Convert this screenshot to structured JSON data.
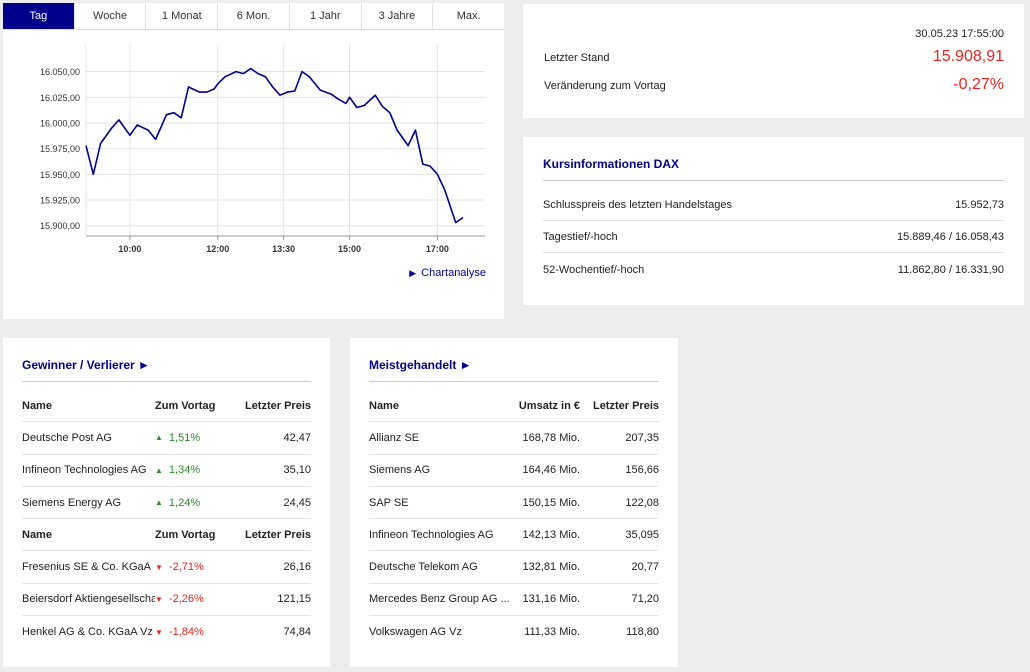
{
  "tabs": [
    "Tag",
    "Woche",
    "1 Monat",
    "6 Mon.",
    "1 Jahr",
    "3 Jahre",
    "Max."
  ],
  "active_tab": "Tag",
  "chart_link": "Chartanalyse",
  "chart_data": {
    "type": "line",
    "title": "",
    "xlabel": "",
    "ylabel": "",
    "x_ticks": [
      "10:00",
      "12:00",
      "13:30",
      "15:00",
      "17:00"
    ],
    "y_ticks": [
      "16.050,00",
      "16.025,00",
      "16.000,00",
      "15.975,00",
      "15.950,00",
      "15.925,00",
      "15.900,00"
    ],
    "ylim": [
      15890,
      16070
    ],
    "xlim": [
      "09:00",
      "18:05"
    ],
    "grid": true,
    "color": "#00008b",
    "series": [
      {
        "x": [
          "09:00",
          "09:10",
          "09:20",
          "09:35",
          "09:45",
          "10:00",
          "10:10",
          "10:25",
          "10:35",
          "10:50",
          "11:00",
          "11:10",
          "11:20",
          "11:35",
          "11:45",
          "11:55",
          "12:00",
          "12:10",
          "12:25",
          "12:35",
          "12:45",
          "12:55",
          "13:05",
          "13:15",
          "13:25",
          "13:35",
          "13:45",
          "13:55",
          "14:05",
          "14:20",
          "14:35",
          "14:45",
          "14:55",
          "15:00",
          "15:10",
          "15:20",
          "15:35",
          "15:45",
          "15:55",
          "16:05",
          "16:20",
          "16:30",
          "16:40",
          "16:50",
          "17:00",
          "17:10",
          "17:25",
          "17:35"
        ],
        "y": [
          15978,
          15950,
          15980,
          15995,
          16003,
          15988,
          15998,
          15993,
          15984,
          16008,
          16010,
          16005,
          16035,
          16030,
          16030,
          16033,
          16038,
          16045,
          16050,
          16048,
          16053,
          16048,
          16045,
          16035,
          16027,
          16030,
          16031,
          16050,
          16045,
          16032,
          16028,
          16023,
          16019,
          16025,
          16015,
          16017,
          16027,
          16016,
          16010,
          15993,
          15978,
          15993,
          15960,
          15958,
          15950,
          15935,
          15903,
          15908
        ]
      }
    ]
  },
  "quote": {
    "timestamp": "30.05.23 17:55:00",
    "last_label": "Letzter Stand",
    "last_value": "15.908,91",
    "change_label": "Veränderung zum Vortag",
    "change_value": "-0,27%"
  },
  "info": {
    "title": "Kursinformationen DAX",
    "rows": [
      {
        "label": "Schlusspreis des letzten Handelstages",
        "value": "15.952,73"
      },
      {
        "label": "Tagestief/-hoch",
        "value": "15.889,46 / 16.058,43"
      },
      {
        "label": "52-Wochentief/-hoch",
        "value": "11.862,80 / 16.331,90"
      }
    ]
  },
  "gainers": {
    "title": "Gewinner / Verlierer ►",
    "headers": [
      "Name",
      "Zum Vortag",
      "Letzter Preis"
    ],
    "up_rows": [
      {
        "name": "Deutsche Post AG",
        "change": "1,51%",
        "price": "42,47"
      },
      {
        "name": "Infineon Technologies AG",
        "change": "1,34%",
        "price": "35,10"
      },
      {
        "name": "Siemens Energy AG",
        "change": "1,24%",
        "price": "24,45"
      }
    ],
    "down_rows": [
      {
        "name": "Fresenius SE & Co. KGaA",
        "change": "-2,71%",
        "price": "26,16"
      },
      {
        "name": "Beiersdorf Aktiengesellschaft",
        "change": "-2,26%",
        "price": "121,15"
      },
      {
        "name": "Henkel AG & Co. KGaA Vz",
        "change": "-1,84%",
        "price": "74,84"
      }
    ],
    "up_color": "#2e8b2e",
    "down_color": "#e8231f"
  },
  "most_traded": {
    "title": "Meistgehandelt ►",
    "headers": [
      "Name",
      "Umsatz in €",
      "Letzter Preis"
    ],
    "rows": [
      {
        "name": "Allianz SE",
        "volume": "168,78 Mio.",
        "price": "207,35"
      },
      {
        "name": "Siemens AG",
        "volume": "164,46 Mio.",
        "price": "156,66"
      },
      {
        "name": "SAP SE",
        "volume": "150,15 Mio.",
        "price": "122,08"
      },
      {
        "name": "Infineon Technologies AG",
        "volume": "142,13 Mio.",
        "price": "35,095"
      },
      {
        "name": "Deutsche Telekom AG",
        "volume": "132,81 Mio.",
        "price": "20,77"
      },
      {
        "name": "Mercedes Benz Group AG ...",
        "volume": "131,16 Mio.",
        "price": "71,20"
      },
      {
        "name": "Volkswagen AG Vz",
        "volume": "111,33 Mio.",
        "price": "118,80"
      }
    ]
  },
  "accent_color": "#00008b"
}
